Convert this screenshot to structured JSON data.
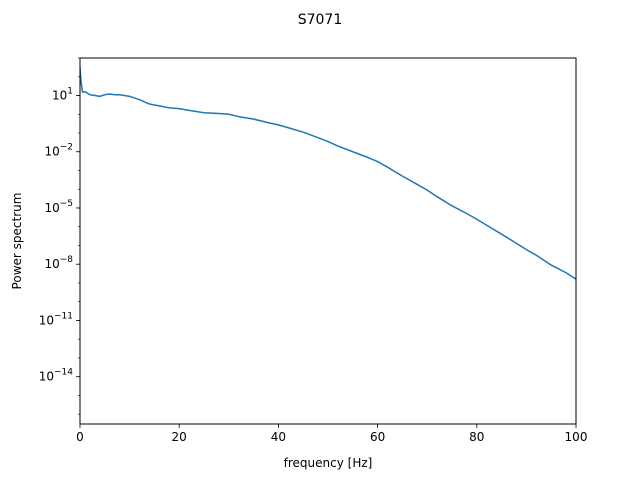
{
  "chart_data": {
    "type": "line",
    "title": "S7071",
    "xlabel": "frequency [Hz]",
    "ylabel": "Power spectrum",
    "xlim": [
      0,
      100
    ],
    "ylim": [
      3e-17,
      1000
    ],
    "yscale": "log",
    "grid": false,
    "x_ticks": [
      0,
      20,
      40,
      60,
      80,
      100
    ],
    "x_tick_labels": [
      "0",
      "20",
      "40",
      "60",
      "80",
      "100"
    ],
    "y_ticks": [
      1e-14,
      1e-11,
      1e-08,
      1e-05,
      0.01,
      10
    ],
    "y_tick_labels": [
      {
        "base": "10",
        "exp": "−14"
      },
      {
        "base": "10",
        "exp": "−11"
      },
      {
        "base": "10",
        "exp": "−8"
      },
      {
        "base": "10",
        "exp": "−5"
      },
      {
        "base": "10",
        "exp": "−2"
      },
      {
        "base": "10",
        "exp": "1"
      }
    ],
    "series": [
      {
        "color": "#1f77b4",
        "x": [
          0,
          0.2,
          0.5,
          1,
          2,
          3,
          4,
          5,
          6,
          7,
          8,
          10,
          12,
          14,
          16,
          18,
          20,
          22,
          25,
          28,
          30,
          32,
          35,
          38,
          40,
          42,
          45,
          48,
          50,
          52,
          55,
          58,
          60,
          62,
          65,
          68,
          70,
          72,
          75,
          78,
          80,
          82,
          85,
          88,
          90,
          92,
          95,
          98,
          100
        ],
        "y": [
          300,
          60,
          15,
          16,
          11,
          10,
          9,
          11,
          12,
          11,
          11,
          9,
          6,
          3.5,
          2.8,
          2.2,
          2.0,
          1.6,
          1.2,
          1.1,
          1.0,
          0.75,
          0.55,
          0.35,
          0.27,
          0.19,
          0.11,
          0.056,
          0.035,
          0.02,
          0.01,
          0.005,
          0.003,
          0.0015,
          0.0005,
          0.00018,
          9e-05,
          4e-05,
          1.3e-05,
          5e-06,
          2.5e-06,
          1.2e-06,
          4e-07,
          1.3e-07,
          6e-08,
          3e-08,
          9e-09,
          3.5e-09,
          1.6e-09
        ]
      }
    ]
  }
}
